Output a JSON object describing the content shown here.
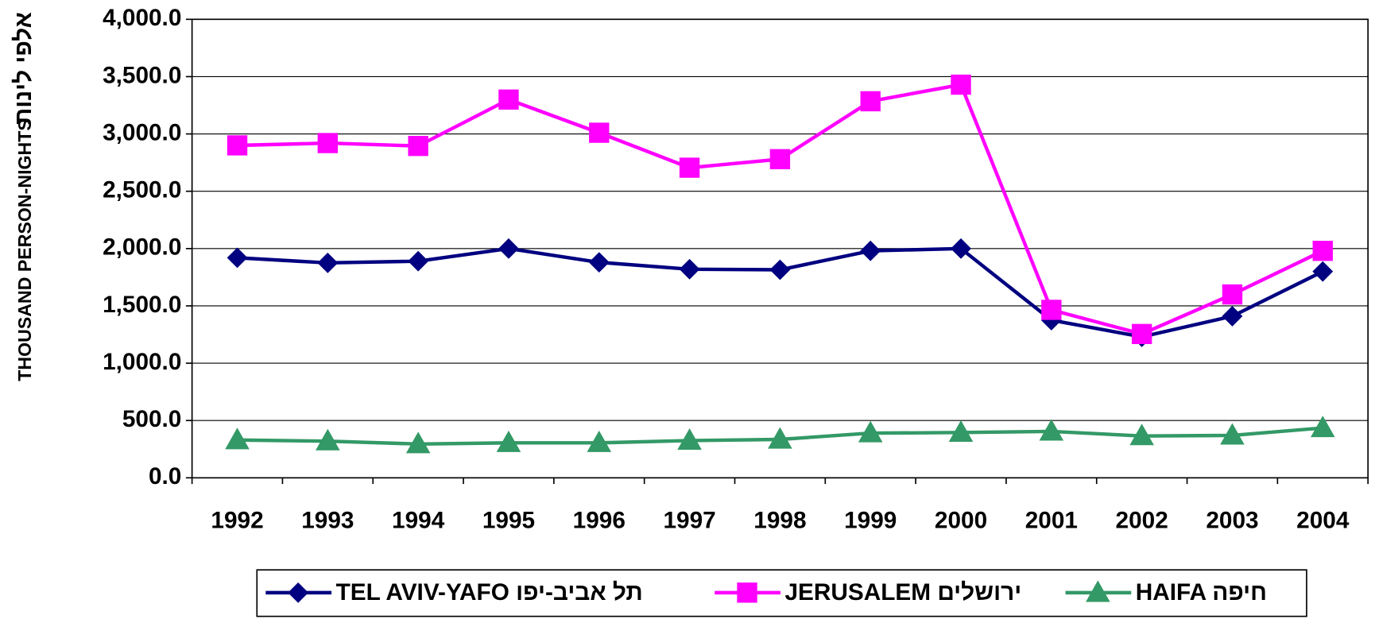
{
  "chart_data": {
    "type": "line",
    "y_label": "THOUSAND PERSON-NIGHTS",
    "y_label_hebrew": "אלפי לינות",
    "categories": [
      "1992",
      "1993",
      "1994",
      "1995",
      "1996",
      "1997",
      "1998",
      "1999",
      "2000",
      "2001",
      "2002",
      "2003",
      "2004"
    ],
    "series": [
      {
        "name": "TEL AVIV-YAFO תל אביב-יפו",
        "color": "#000080",
        "marker": "diamond",
        "values": [
          1920,
          1875,
          1890,
          2000,
          1880,
          1820,
          1815,
          1980,
          2000,
          1375,
          1230,
          1410,
          1800
        ]
      },
      {
        "name": "JERUSALEM ירושלים",
        "color": "#ff00ff",
        "marker": "square",
        "values": [
          2900,
          2920,
          2895,
          3300,
          3010,
          2705,
          2780,
          3285,
          3430,
          1465,
          1255,
          1600,
          1980
        ]
      },
      {
        "name": "HAIFA חיפה",
        "color": "#339966",
        "marker": "triangle",
        "values": [
          330,
          320,
          295,
          305,
          305,
          325,
          335,
          390,
          395,
          405,
          365,
          370,
          435
        ]
      }
    ],
    "ylim": [
      0,
      4000
    ],
    "yticks": [
      {
        "value": 0,
        "label": "0.0"
      },
      {
        "value": 500,
        "label": "500.0"
      },
      {
        "value": 1000,
        "label": "1,000.0"
      },
      {
        "value": 1500,
        "label": "1,500.0"
      },
      {
        "value": 2000,
        "label": "2,000.0"
      },
      {
        "value": 2500,
        "label": "2,500.0"
      },
      {
        "value": 3000,
        "label": "3,000.0"
      },
      {
        "value": 3500,
        "label": "3,500.0"
      },
      {
        "value": 4000,
        "label": "4,000.0"
      }
    ],
    "grid": true,
    "legend": "bottom"
  }
}
